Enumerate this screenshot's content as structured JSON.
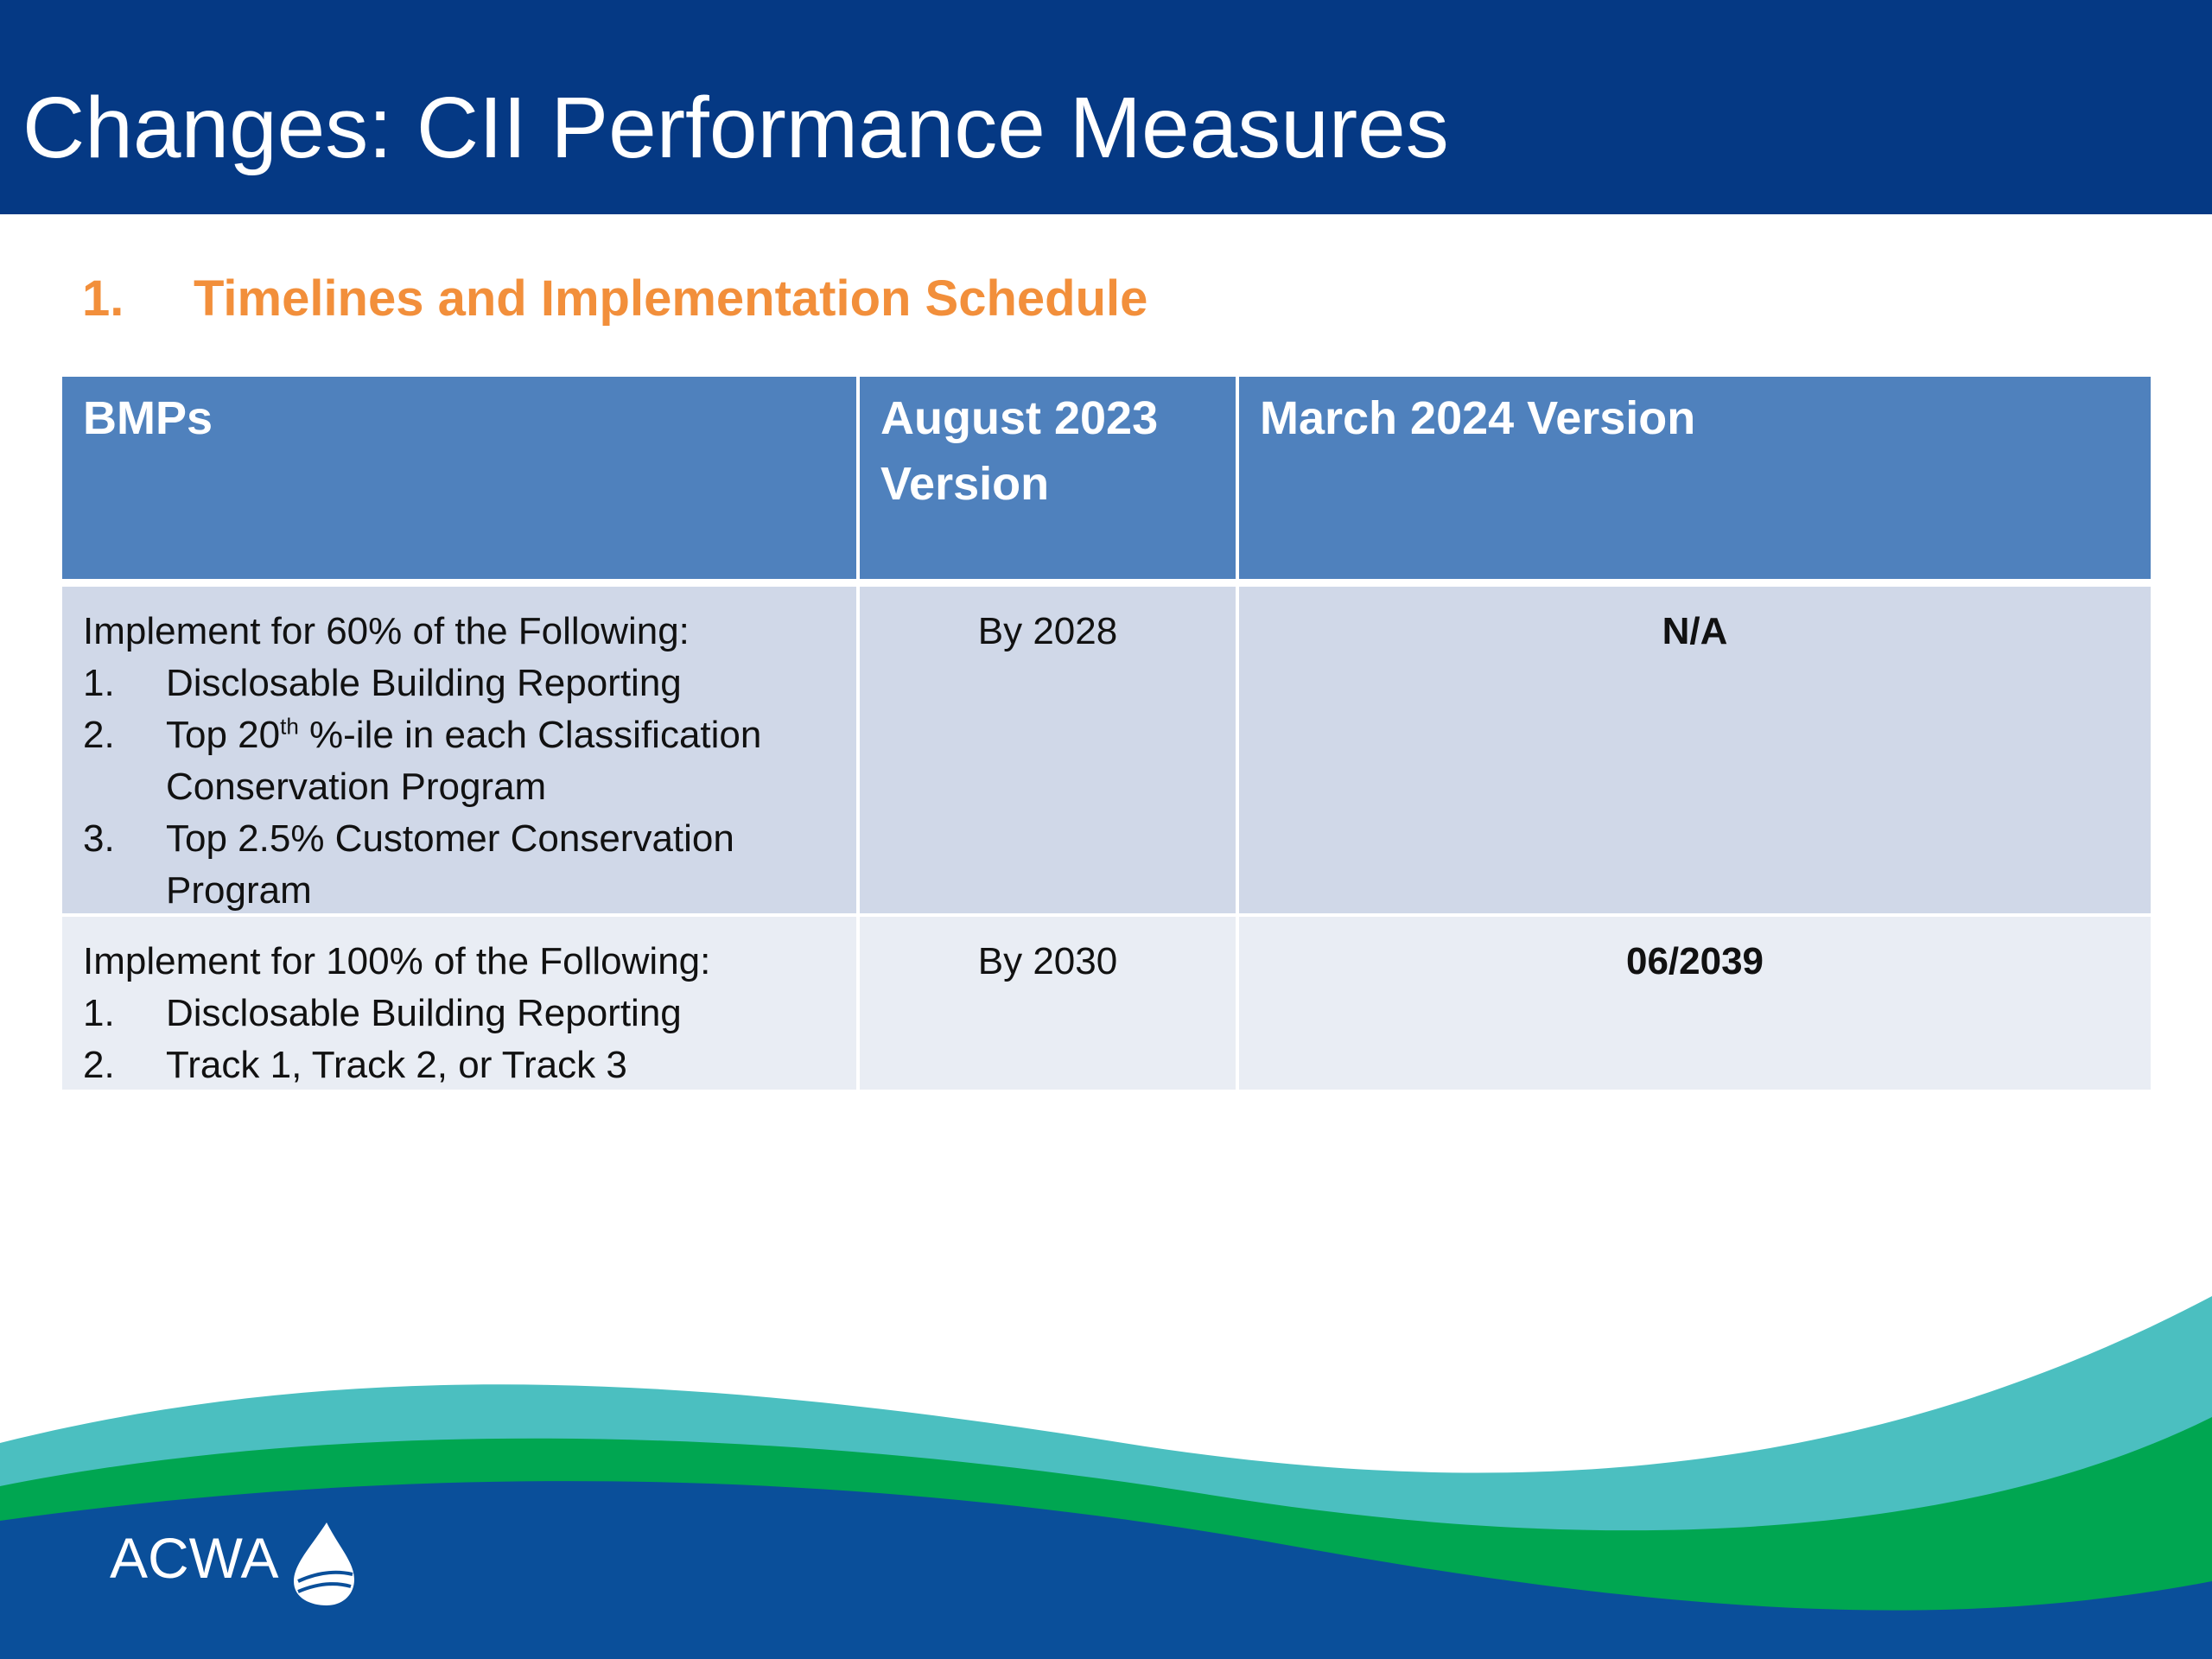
{
  "header": {
    "title": "Changes: CII Performance Measures"
  },
  "section": {
    "number": "1.",
    "title": "Timelines and Implementation Schedule"
  },
  "table": {
    "columns": [
      "BMPs",
      "August 2023 Version",
      "March 2024 Version"
    ],
    "rows": [
      {
        "bmp": {
          "intro": "Implement for 60% of the Following:",
          "items": [
            {
              "number": "1.",
              "text": "Disclosable Building Reporting"
            },
            {
              "number": "2.",
              "text": "Top 20",
              "sup": "th",
              "rest": " %-ile in each Classification Conservation Program"
            },
            {
              "number": "3.",
              "text": "Top 2.5% Customer Conservation Program"
            }
          ]
        },
        "august": "By 2028",
        "march": "N/A"
      },
      {
        "bmp": {
          "intro": "Implement for 100% of the Following:",
          "items": [
            {
              "number": "1.",
              "text": "Disclosable Building Reporting"
            },
            {
              "number": "2.",
              "text": "Track 1, Track 2, or Track 3"
            }
          ]
        },
        "august": "By 2030",
        "march": "06/2039"
      }
    ]
  },
  "logo": {
    "text": "ACWA"
  }
}
